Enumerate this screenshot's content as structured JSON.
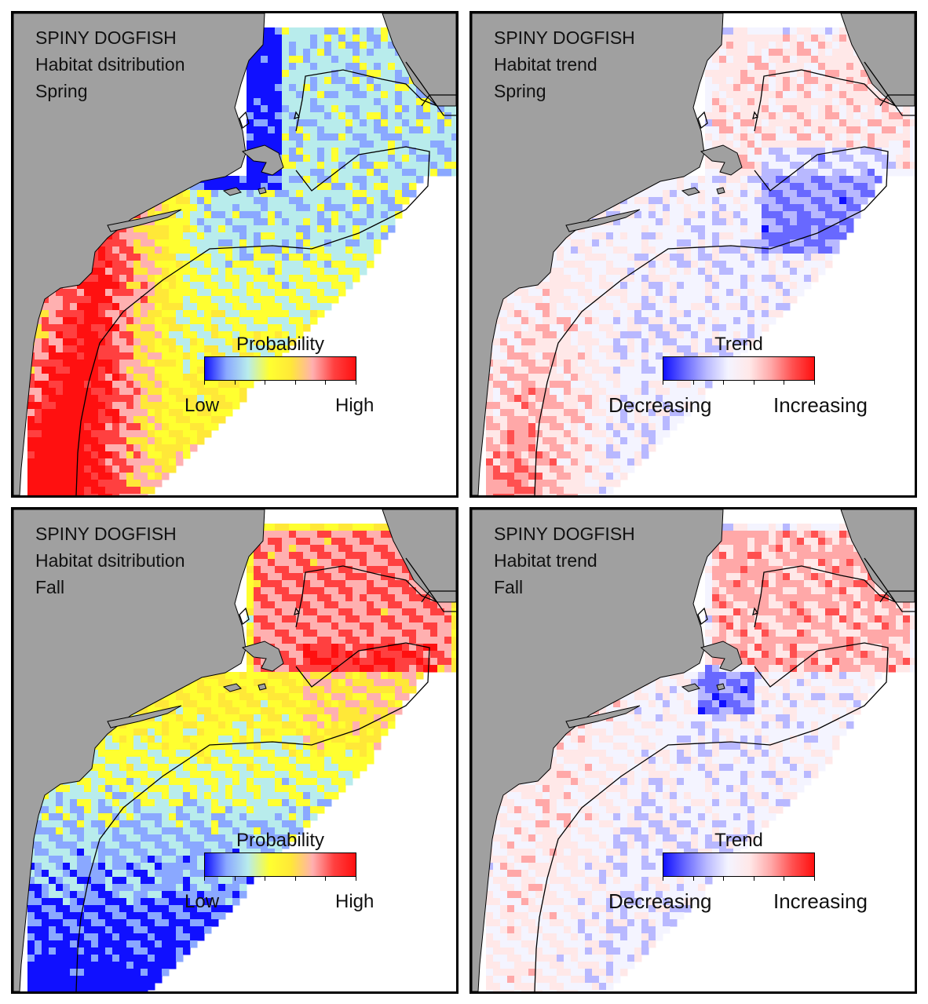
{
  "panels": [
    {
      "id": "p1",
      "species": "SPINY DOGFISH",
      "subtitle": "Habitat dsitribution",
      "season": "Spring",
      "legend": {
        "title": "Probability",
        "low": "Low",
        "high": "High",
        "scale": "probability"
      },
      "pattern": "distribution-spring"
    },
    {
      "id": "p2",
      "species": "SPINY DOGFISH",
      "subtitle": "Habitat trend",
      "season": "Spring",
      "legend": {
        "title": "Trend",
        "low": "Decreasing",
        "high": "Increasing",
        "scale": "trend"
      },
      "pattern": "trend-spring"
    },
    {
      "id": "p3",
      "species": "SPINY DOGFISH",
      "subtitle": "Habitat dsitribution",
      "season": "Fall",
      "legend": {
        "title": "Probability",
        "low": "Low",
        "high": "High",
        "scale": "probability"
      },
      "pattern": "distribution-fall"
    },
    {
      "id": "p4",
      "species": "SPINY DOGFISH",
      "subtitle": "Habitat trend",
      "season": "Fall",
      "legend": {
        "title": "Trend",
        "low": "Decreasing",
        "high": "Increasing",
        "scale": "trend"
      },
      "pattern": "trend-fall"
    }
  ],
  "colors": {
    "land": "#a0a0a0",
    "water": "#ffffff",
    "contour": "#000000",
    "probability_scale": [
      "#1010ff",
      "#8aa8ff",
      "#b8ecec",
      "#ffff30",
      "#ffe838",
      "#ffb0b0",
      "#ff4040",
      "#ff1010"
    ],
    "trend_scale": [
      "#1010ff",
      "#6868ff",
      "#b8b8ff",
      "#f4f4ff",
      "#ffe8e8",
      "#ffa8a8",
      "#ff5050",
      "#ff1010"
    ]
  }
}
